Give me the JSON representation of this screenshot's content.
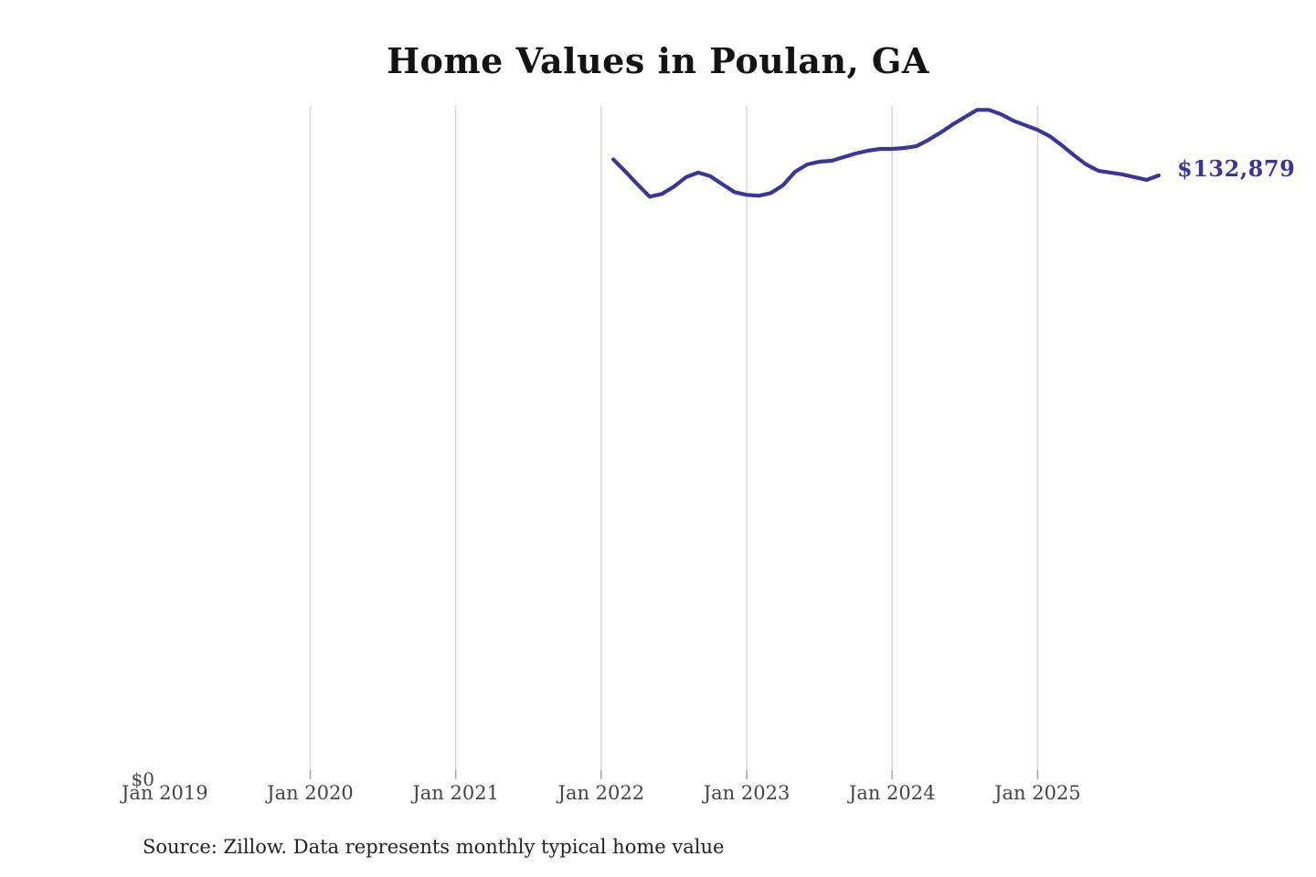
{
  "title": "Home Values in Poulan, GA",
  "source_note": "Source: Zillow. Data represents monthly typical home value",
  "latest_value_label": "$132,879",
  "y_axis": {
    "zero_label": "$0"
  },
  "colors": {
    "line": "#3d3691",
    "annotation": "#3d3691",
    "gridline": "#d6d6d6",
    "tick": "#a8a8a8",
    "axis_text": "#444444",
    "title_text": "#131313",
    "source_text": "#222222"
  },
  "chart_data": {
    "type": "line",
    "title": "Home Values in Poulan, GA",
    "series_name": "Monthly typical home value ($)",
    "x_tick_labels": [
      "Jan 2019",
      "Jan 2020",
      "Jan 2021",
      "Jan 2022",
      "Jan 2023",
      "Jan 2024",
      "Jan 2025"
    ],
    "x_ticks": [
      {
        "label": "Jan 2019",
        "gridline": false
      },
      {
        "label": "Jan 2020",
        "gridline": true
      },
      {
        "label": "Jan 2021",
        "gridline": true
      },
      {
        "label": "Jan 2022",
        "gridline": true
      },
      {
        "label": "Jan 2023",
        "gridline": true
      },
      {
        "label": "Jan 2024",
        "gridline": true
      },
      {
        "label": "Jan 2025",
        "gridline": true
      }
    ],
    "ylim": [
      0,
      150000
    ],
    "grid": "vertical-only",
    "legend": "none",
    "annotation": {
      "text": "$132,879",
      "attach": "line-end"
    },
    "x": [
      "Feb 2022",
      "Mar 2022",
      "Apr 2022",
      "May 2022",
      "Jun 2022",
      "Jul 2022",
      "Aug 2022",
      "Sep 2022",
      "Oct 2022",
      "Nov 2022",
      "Dec 2022",
      "Jan 2023",
      "Feb 2023",
      "Mar 2023",
      "Apr 2023",
      "May 2023",
      "Jun 2023",
      "Jul 2023",
      "Aug 2023",
      "Sep 2023",
      "Oct 2023",
      "Nov 2023",
      "Dec 2023",
      "Jan 2024",
      "Feb 2024",
      "Mar 2024",
      "Apr 2024",
      "May 2024",
      "Jun 2024",
      "Jul 2024",
      "Aug 2024",
      "Sep 2024",
      "Oct 2024",
      "Nov 2024",
      "Dec 2024",
      "Jan 2025",
      "Feb 2025",
      "Mar 2025",
      "Apr 2025",
      "May 2025",
      "Jun 2025",
      "Jul 2025",
      "Aug 2025",
      "Sep 2025",
      "Oct 2025",
      "Nov 2025"
    ],
    "values": [
      136400,
      133700,
      130900,
      128200,
      128800,
      130400,
      132500,
      133500,
      132700,
      130900,
      129200,
      128600,
      128400,
      129000,
      130700,
      133700,
      135300,
      135900,
      136100,
      136900,
      137700,
      138300,
      138700,
      138700,
      138900,
      139300,
      140700,
      142300,
      144100,
      145700,
      147300,
      147300,
      146300,
      144900,
      143900,
      142900,
      141500,
      139500,
      137300,
      135300,
      133900,
      133500,
      133100,
      132500,
      131900,
      132879
    ]
  }
}
